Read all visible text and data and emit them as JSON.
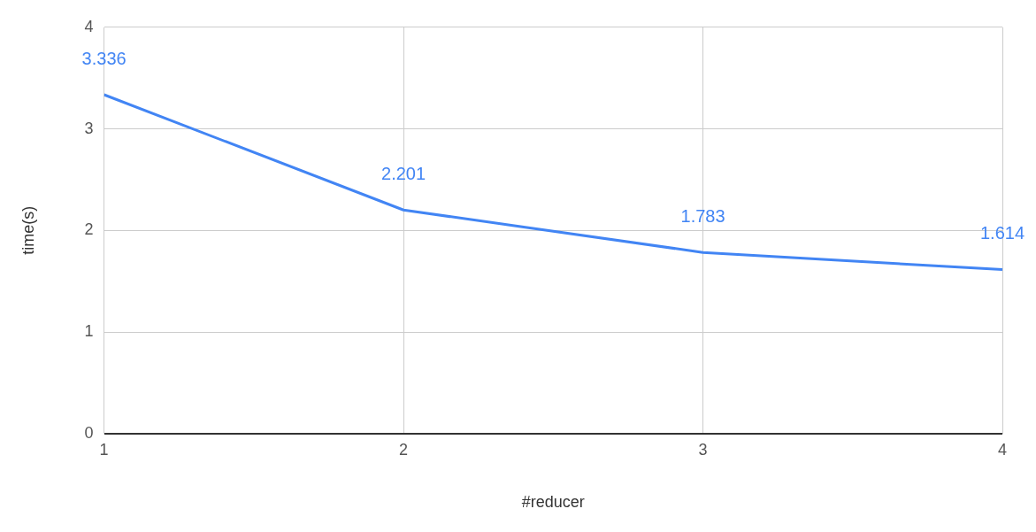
{
  "chart_data": {
    "type": "line",
    "xlabel": "#reducer",
    "ylabel": "time(s)",
    "x": [
      1,
      2,
      3,
      4
    ],
    "series": [
      {
        "color": "#4285f4",
        "values": [
          3.336,
          2.201,
          1.783,
          1.614
        ]
      }
    ],
    "xlim": [
      1,
      4
    ],
    "xticks": [
      1,
      2,
      3,
      4
    ],
    "ylim": [
      0,
      4
    ],
    "yticks": [
      0,
      1,
      2,
      3,
      4
    ],
    "grid": true,
    "legend": false,
    "marker": "none",
    "line_style": "solid",
    "data_labels": true
  }
}
